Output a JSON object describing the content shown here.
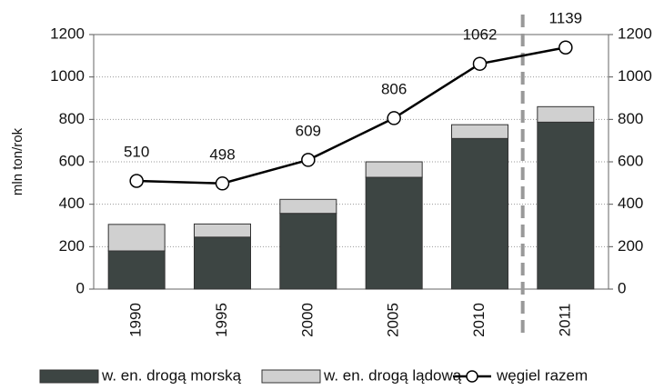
{
  "chart_data": {
    "type": "bar",
    "y_label": "mln ton/rok",
    "categories": [
      "1990",
      "1995",
      "2000",
      "2005",
      "2010",
      "2011"
    ],
    "series": [
      {
        "name": "w. en. drogą morską",
        "type": "bar",
        "color": "#3d4543",
        "values": [
          180,
          245,
          357,
          527,
          710,
          787
        ]
      },
      {
        "name": "w. en. drogą lądową",
        "type": "bar",
        "color": "#d0d0d0",
        "values": [
          125,
          62,
          66,
          73,
          65,
          73
        ]
      },
      {
        "name": "węgiel razem",
        "type": "line",
        "color": "#000000",
        "values": [
          510,
          498,
          609,
          806,
          1062,
          1139
        ]
      }
    ],
    "ylim": [
      0,
      1200
    ],
    "yticks": [
      0,
      200,
      400,
      600,
      800,
      1000,
      1200
    ],
    "y2lim": [
      0,
      1200
    ],
    "y2ticks": [
      0,
      200,
      400,
      600,
      800,
      1000,
      1200
    ],
    "grid": true
  }
}
